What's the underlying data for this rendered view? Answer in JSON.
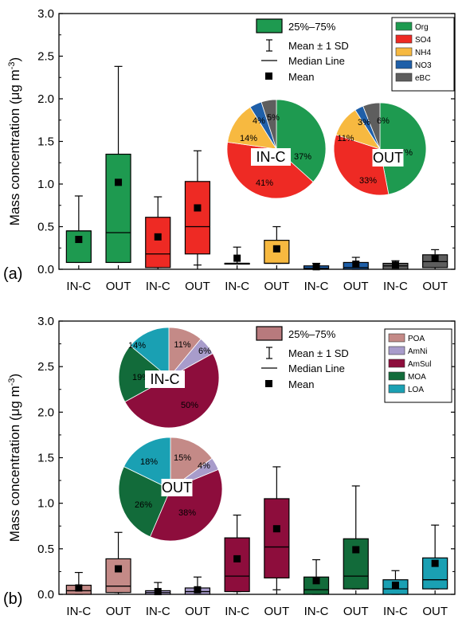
{
  "chart_data": [
    {
      "type": "box",
      "panel_label": "(a)",
      "ylabel": "Mass concentration (μg m",
      "ylabel_sup": "-3",
      "ylabel_close": ")",
      "ylim": [
        0,
        3.0
      ],
      "yticks": [
        "0.0",
        "0.5",
        "1.0",
        "1.5",
        "2.0",
        "2.5",
        "3.0"
      ],
      "categories": [
        "IN-C",
        "OUT",
        "IN-C",
        "OUT",
        "IN-C",
        "OUT",
        "IN-C",
        "OUT",
        "IN-C",
        "OUT"
      ],
      "boxes": [
        {
          "component": "Org",
          "color": "#1e9a50",
          "q1": 0.08,
          "median": 0.45,
          "q3": 0.45,
          "mean": 0.35,
          "low": 0.08,
          "high": 0.86
        },
        {
          "component": "Org",
          "color": "#1e9a50",
          "q1": 0.08,
          "median": 0.43,
          "q3": 1.35,
          "mean": 1.02,
          "low": 0.08,
          "high": 2.38
        },
        {
          "component": "SO4",
          "color": "#ee2a24",
          "q1": 0.02,
          "median": 0.18,
          "q3": 0.61,
          "mean": 0.38,
          "low": 0.02,
          "high": 0.85
        },
        {
          "component": "SO4",
          "color": "#ee2a24",
          "q1": 0.18,
          "median": 0.5,
          "q3": 1.03,
          "mean": 0.72,
          "low": 0.05,
          "high": 1.39
        },
        {
          "component": "NH4",
          "color": "#f7b940",
          "q1": 0.07,
          "median": 0.07,
          "q3": 0.07,
          "mean": 0.13,
          "low": 0.07,
          "high": 0.26
        },
        {
          "component": "NH4",
          "color": "#f7b940",
          "q1": 0.07,
          "median": 0.07,
          "q3": 0.34,
          "mean": 0.24,
          "low": 0.07,
          "high": 0.5
        },
        {
          "component": "NO3",
          "color": "#1f5fa8",
          "q1": 0.0,
          "median": 0.01,
          "q3": 0.04,
          "mean": 0.03,
          "low": 0.0,
          "high": 0.07
        },
        {
          "component": "NO3",
          "color": "#1f5fa8",
          "q1": 0.0,
          "median": 0.02,
          "q3": 0.08,
          "mean": 0.06,
          "low": 0.0,
          "high": 0.14
        },
        {
          "component": "eBC",
          "color": "#5e5e5e",
          "q1": 0.0,
          "median": 0.04,
          "q3": 0.07,
          "mean": 0.05,
          "low": 0.0,
          "high": 0.1
        },
        {
          "component": "eBC",
          "color": "#5e5e5e",
          "q1": 0.02,
          "median": 0.09,
          "q3": 0.17,
          "mean": 0.13,
          "low": 0.02,
          "high": 0.23
        }
      ],
      "legend": {
        "box_label": "25%–75%",
        "box_color": "#1e9a50",
        "sd_label": "Mean ± 1 SD",
        "median_label": "Median Line",
        "mean_label": "Mean"
      },
      "color_legend": [
        {
          "name": "Org",
          "color": "#1e9a50"
        },
        {
          "name": "SO4",
          "color": "#ee2a24"
        },
        {
          "name": "NH4",
          "color": "#f7b940"
        },
        {
          "name": "NO3",
          "color": "#1f5fa8"
        },
        {
          "name": "eBC",
          "color": "#5e5e5e"
        }
      ],
      "pies": [
        {
          "name": "IN-C",
          "slices": [
            {
              "component": "Org",
              "value": 37,
              "label": "37%",
              "color": "#1e9a50"
            },
            {
              "component": "SO4",
              "value": 41,
              "label": "41%",
              "color": "#ee2a24"
            },
            {
              "component": "NH4",
              "value": 14,
              "label": "14%",
              "color": "#f7b940"
            },
            {
              "component": "NO3",
              "value": 4,
              "label": "4%",
              "color": "#1f5fa8"
            },
            {
              "component": "eBC",
              "value": 5,
              "label": "5%",
              "color": "#5e5e5e"
            }
          ]
        },
        {
          "name": "OUT",
          "slices": [
            {
              "component": "Org",
              "value": 47,
              "label": "47%",
              "color": "#1e9a50"
            },
            {
              "component": "SO4",
              "value": 33,
              "label": "33%",
              "color": "#ee2a24"
            },
            {
              "component": "NH4",
              "value": 11,
              "label": "11%",
              "color": "#f7b940"
            },
            {
              "component": "NO3",
              "value": 3,
              "label": "3%",
              "color": "#1f5fa8"
            },
            {
              "component": "eBC",
              "value": 6,
              "label": "6%",
              "color": "#5e5e5e"
            }
          ]
        }
      ]
    },
    {
      "type": "box",
      "panel_label": "(b)",
      "ylabel": "Mass concentration (μg m",
      "ylabel_sup": "-3",
      "ylabel_close": ")",
      "ylim": [
        0,
        3.0
      ],
      "yticks": [
        "0.0",
        "0.5",
        "1.0",
        "1.5",
        "2.0",
        "2.5",
        "3.0"
      ],
      "categories": [
        "IN-C",
        "OUT",
        "IN-C",
        "OUT",
        "IN-C",
        "OUT",
        "IN-C",
        "OUT",
        "IN-C",
        "OUT"
      ],
      "boxes": [
        {
          "component": "POA",
          "color": "#c48a87",
          "q1": 0.0,
          "median": 0.04,
          "q3": 0.1,
          "mean": 0.07,
          "low": 0.0,
          "high": 0.24
        },
        {
          "component": "POA",
          "color": "#c48a87",
          "q1": 0.02,
          "median": 0.09,
          "q3": 0.39,
          "mean": 0.28,
          "low": 0.02,
          "high": 0.68
        },
        {
          "component": "AmNi",
          "color": "#a89ccb",
          "q1": 0.0,
          "median": 0.02,
          "q3": 0.04,
          "mean": 0.03,
          "low": 0.0,
          "high": 0.13
        },
        {
          "component": "AmNi",
          "color": "#a89ccb",
          "q1": 0.0,
          "median": 0.03,
          "q3": 0.07,
          "mean": 0.05,
          "low": 0.0,
          "high": 0.19
        },
        {
          "component": "AmSul",
          "color": "#8d0d3c",
          "q1": 0.03,
          "median": 0.2,
          "q3": 0.62,
          "mean": 0.39,
          "low": 0.03,
          "high": 0.87
        },
        {
          "component": "AmSul",
          "color": "#8d0d3c",
          "q1": 0.18,
          "median": 0.52,
          "q3": 1.05,
          "mean": 0.72,
          "low": 0.05,
          "high": 1.4
        },
        {
          "component": "MOA",
          "color": "#126b3a",
          "q1": 0.0,
          "median": 0.05,
          "q3": 0.19,
          "mean": 0.15,
          "low": 0.0,
          "high": 0.38
        },
        {
          "component": "MOA",
          "color": "#126b3a",
          "q1": 0.06,
          "median": 0.2,
          "q3": 0.61,
          "mean": 0.49,
          "low": 0.06,
          "high": 1.19
        },
        {
          "component": "LOA",
          "color": "#1aa0b3",
          "q1": 0.0,
          "median": 0.06,
          "q3": 0.16,
          "mean": 0.1,
          "low": 0.0,
          "high": 0.26
        },
        {
          "component": "LOA",
          "color": "#1aa0b3",
          "q1": 0.06,
          "median": 0.16,
          "q3": 0.4,
          "mean": 0.34,
          "low": 0.06,
          "high": 0.76
        }
      ],
      "legend": {
        "box_label": "25%–75%",
        "box_color": "#b87a7d",
        "sd_label": "Mean ± 1 SD",
        "median_label": "Median Line",
        "mean_label": "Mean"
      },
      "color_legend": [
        {
          "name": "POA",
          "color": "#c48a87"
        },
        {
          "name": "AmNi",
          "color": "#a89ccb"
        },
        {
          "name": "AmSul",
          "color": "#8d0d3c"
        },
        {
          "name": "MOA",
          "color": "#126b3a"
        },
        {
          "name": "LOA",
          "color": "#1aa0b3"
        }
      ],
      "pies": [
        {
          "name": "IN-C",
          "slices": [
            {
              "component": "POA",
              "value": 11,
              "label": "11%",
              "color": "#c48a87"
            },
            {
              "component": "AmNi",
              "value": 6,
              "label": "6%",
              "color": "#a89ccb"
            },
            {
              "component": "AmSul",
              "value": 50,
              "label": "50%",
              "color": "#8d0d3c"
            },
            {
              "component": "MOA",
              "value": 19,
              "label": "19%",
              "color": "#126b3a"
            },
            {
              "component": "LOA",
              "value": 14,
              "label": "14%",
              "color": "#1aa0b3"
            }
          ]
        },
        {
          "name": "OUT",
          "slices": [
            {
              "component": "POA",
              "value": 15,
              "label": "15%",
              "color": "#c48a87"
            },
            {
              "component": "AmNi",
              "value": 4,
              "label": "4%",
              "color": "#a89ccb"
            },
            {
              "component": "AmSul",
              "value": 38,
              "label": "38%",
              "color": "#8d0d3c"
            },
            {
              "component": "MOA",
              "value": 26,
              "label": "26%",
              "color": "#126b3a"
            },
            {
              "component": "LOA",
              "value": 18,
              "label": "18%",
              "color": "#1aa0b3"
            }
          ]
        }
      ]
    }
  ]
}
